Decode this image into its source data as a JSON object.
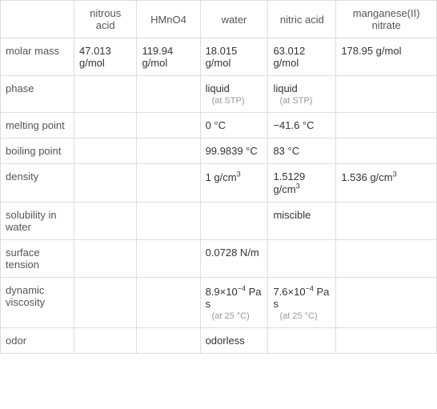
{
  "table": {
    "columns": [
      "",
      "nitrous acid",
      "HMnO4",
      "water",
      "nitric acid",
      "manganese(II) nitrate"
    ],
    "rows": [
      {
        "header": "molar mass",
        "cells": [
          {
            "main": "47.013 g/mol"
          },
          {
            "main": "119.94 g/mol"
          },
          {
            "main": "18.015 g/mol"
          },
          {
            "main": "63.012 g/mol"
          },
          {
            "main": "178.95 g/mol"
          }
        ]
      },
      {
        "header": "phase",
        "cells": [
          {
            "main": ""
          },
          {
            "main": ""
          },
          {
            "main": "liquid",
            "sub": "(at STP)"
          },
          {
            "main": "liquid",
            "sub": "(at STP)"
          },
          {
            "main": ""
          }
        ]
      },
      {
        "header": "melting point",
        "cells": [
          {
            "main": ""
          },
          {
            "main": ""
          },
          {
            "main": "0 °C"
          },
          {
            "main": "−41.6 °C"
          },
          {
            "main": ""
          }
        ]
      },
      {
        "header": "boiling point",
        "cells": [
          {
            "main": ""
          },
          {
            "main": ""
          },
          {
            "main": "99.9839 °C"
          },
          {
            "main": "83 °C"
          },
          {
            "main": ""
          }
        ]
      },
      {
        "header": "density",
        "cells": [
          {
            "main": ""
          },
          {
            "main": ""
          },
          {
            "main": "1 g/cm",
            "sup": "3"
          },
          {
            "main": "1.5129 g/cm",
            "sup": "3"
          },
          {
            "main": "1.536 g/cm",
            "sup": "3"
          }
        ]
      },
      {
        "header": "solubility in water",
        "cells": [
          {
            "main": ""
          },
          {
            "main": ""
          },
          {
            "main": ""
          },
          {
            "main": "miscible"
          },
          {
            "main": ""
          }
        ]
      },
      {
        "header": "surface tension",
        "cells": [
          {
            "main": ""
          },
          {
            "main": ""
          },
          {
            "main": "0.0728 N/m"
          },
          {
            "main": ""
          },
          {
            "main": ""
          }
        ]
      },
      {
        "header": "dynamic viscosity",
        "cells": [
          {
            "main": ""
          },
          {
            "main": ""
          },
          {
            "main": "8.9×10",
            "sup": "−4",
            "after": " Pa s",
            "sub": "(at 25 °C)"
          },
          {
            "main": "7.6×10",
            "sup": "−4",
            "after": " Pa s",
            "sub": "(at 25 °C)"
          },
          {
            "main": ""
          }
        ]
      },
      {
        "header": "odor",
        "cells": [
          {
            "main": ""
          },
          {
            "main": ""
          },
          {
            "main": "odorless"
          },
          {
            "main": ""
          },
          {
            "main": ""
          }
        ]
      }
    ],
    "col_widths": [
      "92px",
      "90px",
      "90px",
      "90px",
      "90px",
      "94px"
    ]
  }
}
